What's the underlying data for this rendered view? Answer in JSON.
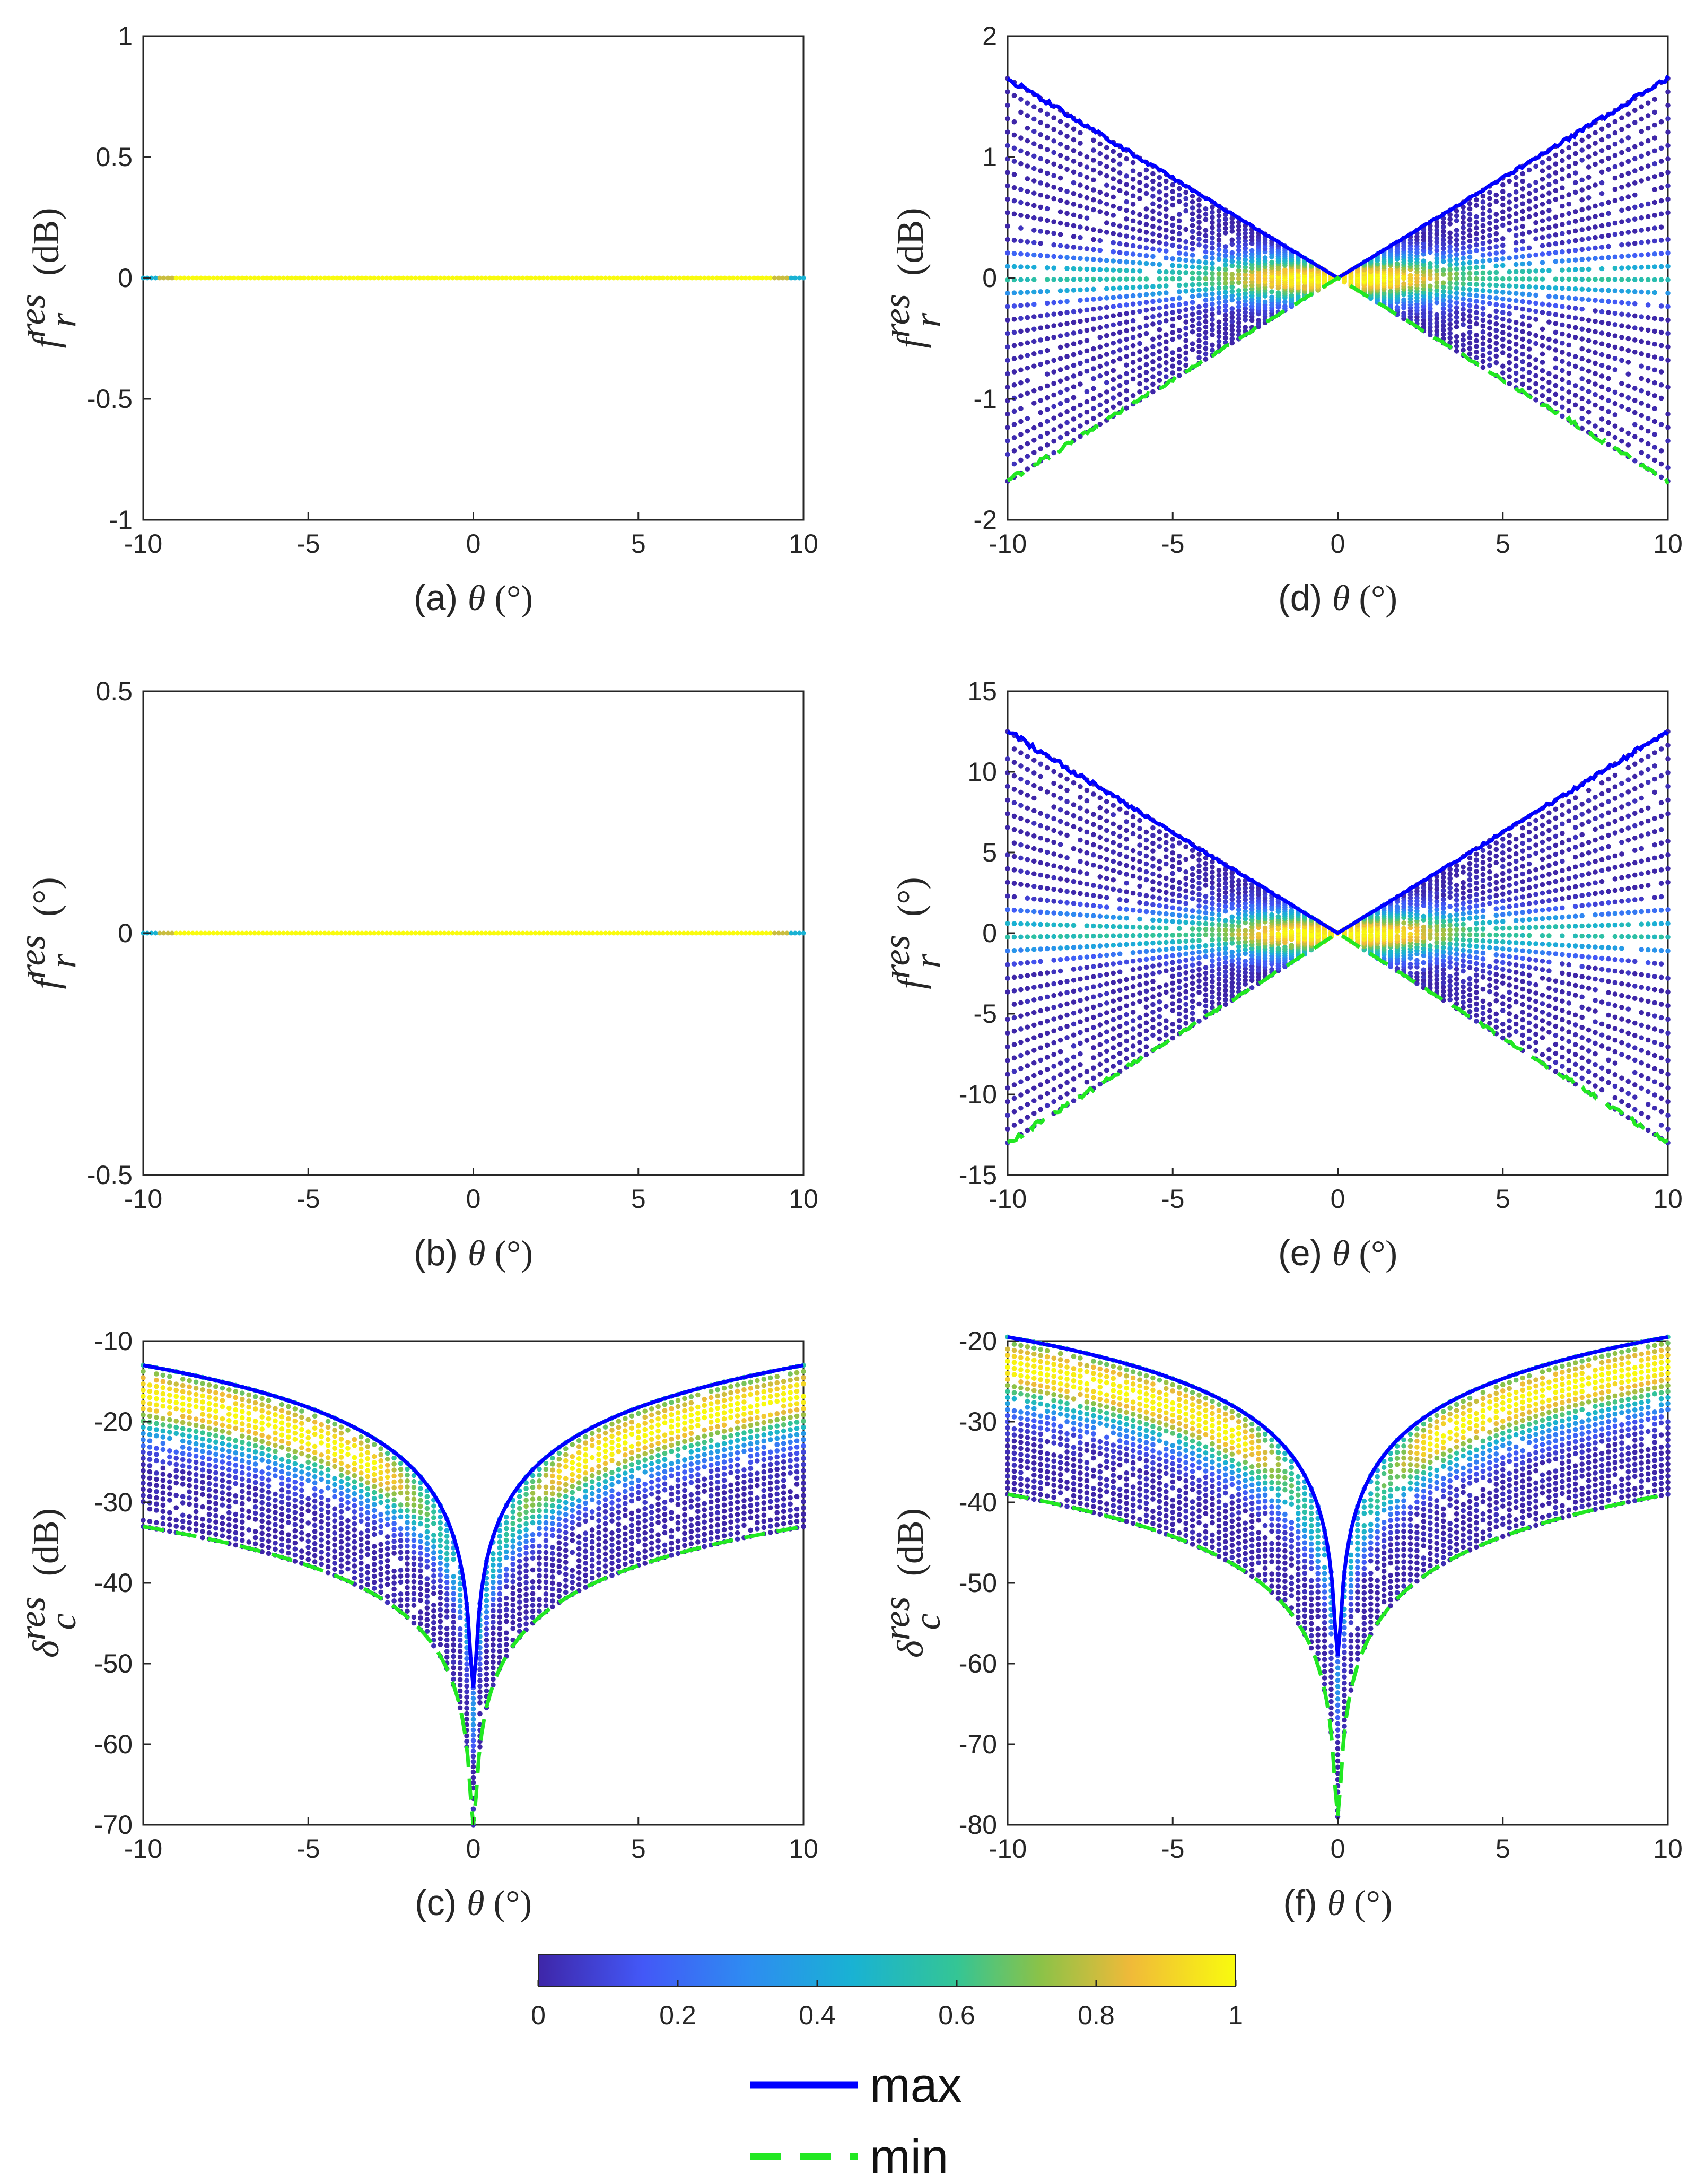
{
  "figure": {
    "colorbar": {
      "ticks": [
        "0",
        "0.2",
        "0.4",
        "0.6",
        "0.8",
        "1"
      ],
      "range": [
        0,
        1
      ]
    },
    "legend": [
      {
        "label": "max",
        "color": "#0000ff",
        "style": "solid"
      },
      {
        "label": "min",
        "color": "#22e822",
        "style": "dashed"
      }
    ],
    "colors": {
      "max_line": "#0000ff",
      "min_line": "#22e822",
      "axis": "#262626"
    }
  },
  "chart_data": [
    {
      "id": "a",
      "type": "scatter",
      "caption_tag": "(a)",
      "caption_var": "θ",
      "caption_unit": "(°)",
      "ylabel_sym": "f",
      "ylabel_sup": "res",
      "ylabel_sub": "r",
      "ylabel_unit": "(dB)",
      "xlim": [
        -10,
        10
      ],
      "ylim": [
        -1,
        1
      ],
      "xticks": [
        -10,
        -5,
        0,
        5,
        10
      ],
      "xtick_labels": [
        "-10",
        "-5",
        "0",
        "5",
        "10"
      ],
      "yticks": [
        -1,
        -0.5,
        0,
        0.5,
        1
      ],
      "ytick_labels": [
        "-1",
        "-0.5",
        "0",
        "0.5",
        "1"
      ],
      "model": "flat",
      "max_edge": 0,
      "min_edge": 0,
      "has_lines": false
    },
    {
      "id": "b",
      "type": "scatter",
      "caption_tag": "(b)",
      "caption_var": "θ",
      "caption_unit": "(°)",
      "ylabel_sym": "f",
      "ylabel_sup": "res",
      "ylabel_sub": "r",
      "ylabel_unit": "(°)",
      "xlim": [
        -10,
        10
      ],
      "ylim": [
        -0.5,
        0.5
      ],
      "xticks": [
        -10,
        -5,
        0,
        5,
        10
      ],
      "xtick_labels": [
        "-10",
        "-5",
        "0",
        "5",
        "10"
      ],
      "yticks": [
        -0.5,
        0,
        0.5
      ],
      "ytick_labels": [
        "-0.5",
        "0",
        "0.5"
      ],
      "model": "flat",
      "max_edge": 0,
      "min_edge": 0,
      "has_lines": false
    },
    {
      "id": "c",
      "type": "scatter",
      "caption_tag": "(c)",
      "caption_var": "θ",
      "caption_unit": "(°)",
      "ylabel_sym": "δ",
      "ylabel_sup": "res",
      "ylabel_sub": "c",
      "ylabel_unit": "(dB)",
      "xlim": [
        -10,
        10
      ],
      "ylim": [
        -70,
        -10
      ],
      "xticks": [
        -10,
        -5,
        0,
        5,
        10
      ],
      "xtick_labels": [
        "-10",
        "-5",
        "0",
        "5",
        "10"
      ],
      "yticks": [
        -70,
        -60,
        -50,
        -40,
        -30,
        -20,
        -10
      ],
      "ytick_labels": [
        "-70",
        "-60",
        "-50",
        "-40",
        "-30",
        "-20",
        "-10"
      ],
      "model": "log",
      "max_edge": -13,
      "min_edge": -33,
      "max_floor": -53,
      "min_floor": -70,
      "has_lines": true
    },
    {
      "id": "d",
      "type": "scatter",
      "caption_tag": "(d)",
      "caption_var": "θ",
      "caption_unit": "(°)",
      "ylabel_sym": "f",
      "ylabel_sup": "res",
      "ylabel_sub": "r",
      "ylabel_unit": "(dB)",
      "xlim": [
        -10,
        10
      ],
      "ylim": [
        -2,
        2
      ],
      "xticks": [
        -10,
        -5,
        0,
        5,
        10
      ],
      "xtick_labels": [
        "-10",
        "-5",
        "0",
        "5",
        "10"
      ],
      "yticks": [
        -2,
        -1,
        0,
        1,
        2
      ],
      "ytick_labels": [
        "-2",
        "-1",
        "0",
        "1",
        "2"
      ],
      "model": "linear",
      "max_edge": 1.65,
      "min_edge": -1.68,
      "has_lines": true
    },
    {
      "id": "e",
      "type": "scatter",
      "caption_tag": "(e)",
      "caption_var": "θ",
      "caption_unit": "(°)",
      "ylabel_sym": "f",
      "ylabel_sup": "res",
      "ylabel_sub": "r",
      "ylabel_unit": "(°)",
      "xlim": [
        -10,
        10
      ],
      "ylim": [
        -15,
        15
      ],
      "xticks": [
        -10,
        -5,
        0,
        5,
        10
      ],
      "xtick_labels": [
        "-10",
        "-5",
        "0",
        "5",
        "10"
      ],
      "yticks": [
        -15,
        -10,
        -5,
        0,
        5,
        10,
        15
      ],
      "ytick_labels": [
        "-15",
        "-10",
        "-5",
        "0",
        "5",
        "10",
        "15"
      ],
      "model": "linear",
      "max_edge": 12.5,
      "min_edge": -13,
      "has_lines": true
    },
    {
      "id": "f",
      "type": "scatter",
      "caption_tag": "(f)",
      "caption_var": "θ",
      "caption_unit": "(°)",
      "ylabel_sym": "δ",
      "ylabel_sup": "res",
      "ylabel_sub": "c",
      "ylabel_unit": "(dB)",
      "xlim": [
        -10,
        10
      ],
      "ylim": [
        -80,
        -20
      ],
      "xticks": [
        -10,
        -5,
        0,
        5,
        10
      ],
      "xtick_labels": [
        "-10",
        "-5",
        "0",
        "5",
        "10"
      ],
      "yticks": [
        -80,
        -70,
        -60,
        -50,
        -40,
        -30,
        -20
      ],
      "ytick_labels": [
        "-80",
        "-70",
        "-60",
        "-50",
        "-40",
        "-30",
        "-20"
      ],
      "model": "log",
      "max_edge": -19.5,
      "min_edge": -39,
      "max_floor": -59,
      "min_floor": -79,
      "has_lines": true
    }
  ]
}
